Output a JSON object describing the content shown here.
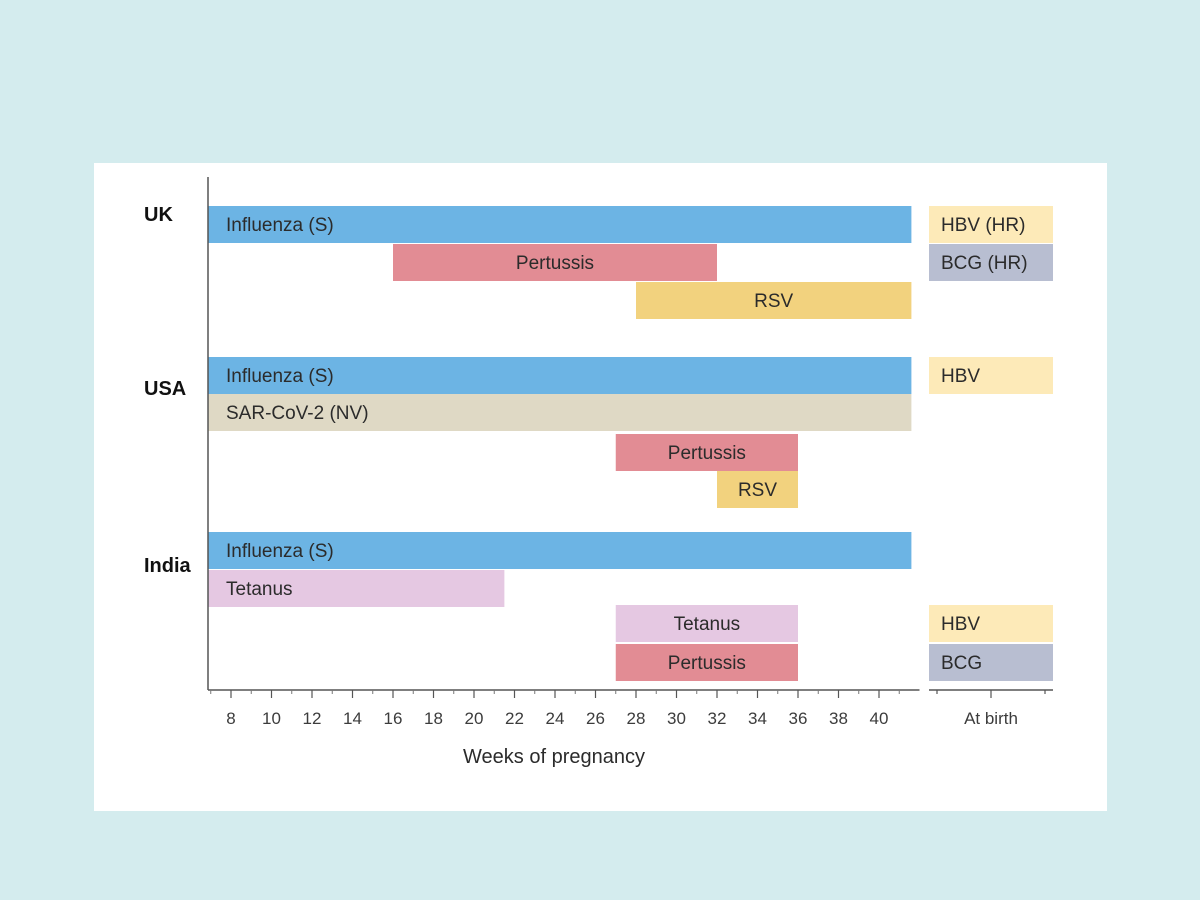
{
  "chart_data": {
    "type": "gantt",
    "xlabel": "Weeks of pregnancy",
    "x_ticks": [
      8,
      10,
      12,
      14,
      16,
      18,
      20,
      22,
      24,
      26,
      28,
      30,
      32,
      34,
      36,
      38,
      40
    ],
    "x_range": [
      7,
      42
    ],
    "birth_tick_label": "At birth",
    "grid": false,
    "colors": {
      "influenza": "#6cb4e4",
      "pertussis": "#e28c94",
      "rsv": "#f2d27e",
      "sarscov2": "#dfd9c5",
      "tetanus": "#e5c8e2",
      "hbv": "#fdeab8",
      "bcg": "#b8bed1"
    },
    "groups": [
      {
        "country": "UK",
        "pregnancy_bars": [
          {
            "label": "Influenza (S)",
            "start": 7,
            "end": 41.6,
            "color": "influenza",
            "align": "left"
          },
          {
            "label": "Pertussis",
            "start": 16,
            "end": 32,
            "color": "pertussis",
            "align": "center"
          },
          {
            "label": "RSV",
            "start": 28,
            "end": 41.6,
            "color": "rsv",
            "align": "center"
          }
        ],
        "birth_bars": [
          {
            "label": "HBV (HR)",
            "color": "hbv"
          },
          {
            "label": "BCG (HR)",
            "color": "bcg"
          }
        ]
      },
      {
        "country": "USA",
        "pregnancy_bars": [
          {
            "label": "Influenza (S)",
            "start": 7,
            "end": 41.6,
            "color": "influenza",
            "align": "left"
          },
          {
            "label": "SAR-CoV-2 (NV)",
            "start": 7,
            "end": 41.6,
            "color": "sarscov2",
            "align": "left"
          },
          {
            "label": "Pertussis",
            "start": 27,
            "end": 36,
            "color": "pertussis",
            "align": "center"
          },
          {
            "label": "RSV",
            "start": 32,
            "end": 36,
            "color": "rsv",
            "align": "center"
          }
        ],
        "birth_bars": [
          {
            "label": "HBV",
            "color": "hbv"
          }
        ]
      },
      {
        "country": "India",
        "pregnancy_bars": [
          {
            "label": "Influenza (S)",
            "start": 7,
            "end": 41.6,
            "color": "influenza",
            "align": "left"
          },
          {
            "label": "Tetanus",
            "start": 7,
            "end": 21.5,
            "color": "tetanus",
            "align": "left"
          },
          {
            "label": "Tetanus",
            "start": 27,
            "end": 36,
            "color": "tetanus",
            "align": "center"
          },
          {
            "label": "Pertussis",
            "start": 27,
            "end": 36,
            "color": "pertussis",
            "align": "center"
          }
        ],
        "birth_bars": [
          {
            "label": "HBV",
            "color": "hbv"
          },
          {
            "label": "BCG",
            "color": "bcg"
          }
        ]
      }
    ]
  }
}
